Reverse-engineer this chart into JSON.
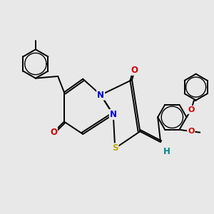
{
  "bg_color": "#e8e8e8",
  "bond_color": "#000000",
  "bond_width": 1.4,
  "atom_colors": {
    "N": "#0000cc",
    "O": "#cc0000",
    "S": "#bbaa00",
    "H": "#008888",
    "C": "#000000"
  },
  "font_size": 8.5,
  "figsize": [
    3.0,
    3.0
  ],
  "dpi": 100
}
